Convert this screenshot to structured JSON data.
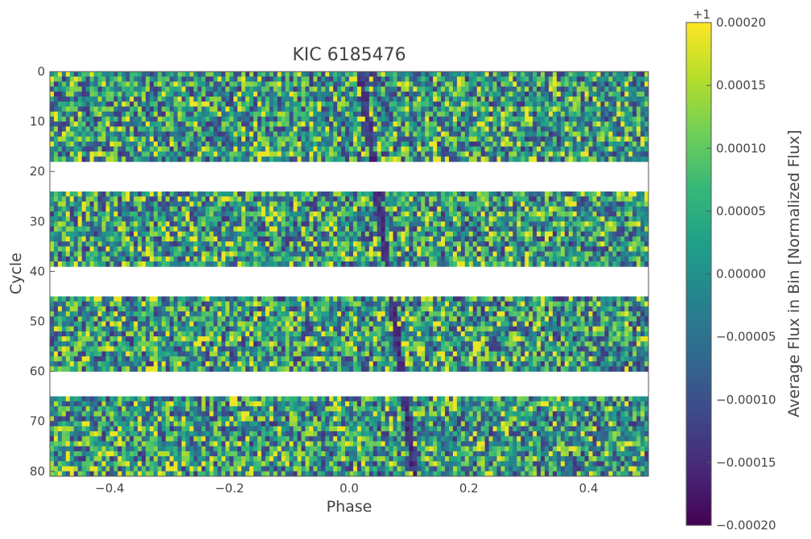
{
  "chart_data": {
    "type": "heatmap",
    "title": "KIC 6185476",
    "xlabel": "Phase",
    "ylabel": "Cycle",
    "xlim": [
      -0.5,
      0.5
    ],
    "ylim": [
      81,
      0
    ],
    "y_inverted": true,
    "x_ticks": [
      -0.4,
      -0.2,
      0.0,
      0.2,
      0.4
    ],
    "x_tick_labels": [
      "−0.4",
      "−0.2",
      "0.0",
      "0.2",
      "0.4"
    ],
    "y_ticks": [
      0,
      10,
      20,
      30,
      40,
      50,
      60,
      70,
      80
    ],
    "y_tick_labels": [
      "0",
      "10",
      "20",
      "30",
      "40",
      "50",
      "60",
      "70",
      "80"
    ],
    "n_cycles": 81,
    "n_phase_bins": 150,
    "missing_cycle_bands": [
      [
        18.5,
        24.3
      ],
      [
        38.8,
        45.3
      ],
      [
        59.8,
        65.3
      ]
    ],
    "dip_phase_start": 0.02,
    "dip_phase_end": 0.11,
    "colorbar": {
      "label": "Average Flux in Bin [Normalized Flux]",
      "offset_label": "+1",
      "vmin": -0.0002,
      "vmax": 0.0002,
      "colormap": "viridis",
      "ticks": [
        0.0002,
        0.00015,
        0.0001,
        5e-05,
        0.0,
        -5e-05,
        -0.0001,
        -0.00015,
        -0.0002
      ],
      "tick_labels": [
        "0.00020",
        "0.00015",
        "0.00010",
        "0.00005",
        "0.00000",
        "−0.00005",
        "−0.00010",
        "−0.00015",
        "−0.00020"
      ]
    },
    "colors": {
      "viridis_stops": [
        "#440154",
        "#482878",
        "#3e4989",
        "#31688e",
        "#26828e",
        "#1f9e89",
        "#35b779",
        "#6ece58",
        "#b5de2b",
        "#fde725"
      ],
      "axis": "#555555",
      "text": "#444444",
      "background": "#ffffff"
    },
    "grid": false
  }
}
